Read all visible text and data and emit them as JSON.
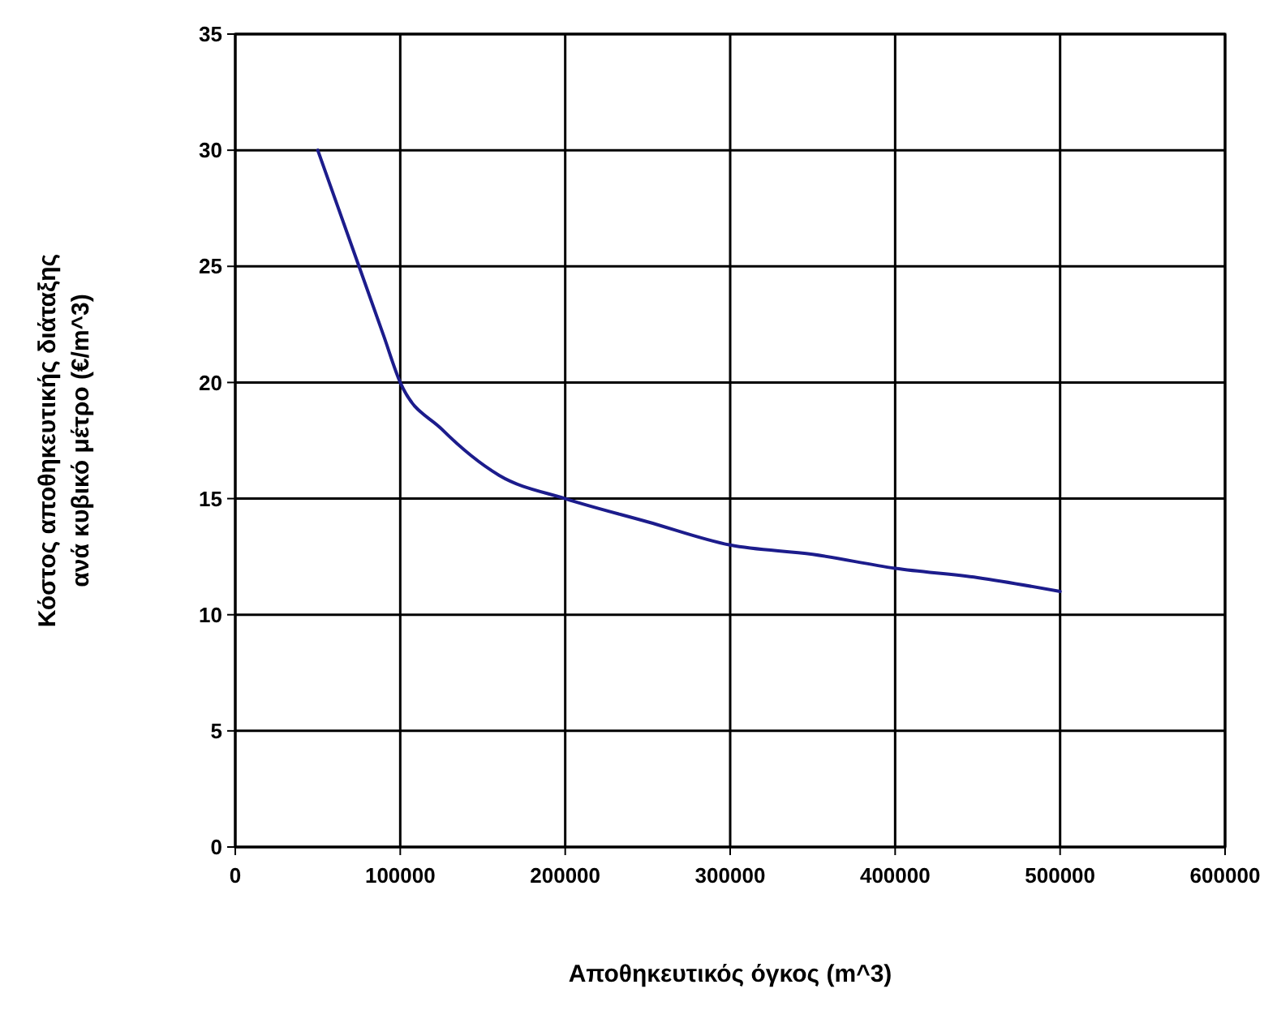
{
  "chart_data": {
    "type": "line",
    "xlabel": "Αποθηκευτικός όγκος (m^3)",
    "ylabel": "Κόστος αποθηκευτικής διάταξης\nανά κυβικό μέτρο (€/m^3)",
    "x": [
      50000,
      75000,
      90000,
      100000,
      125000,
      160000,
      200000,
      250000,
      300000,
      350000,
      400000,
      450000,
      500000
    ],
    "series": [
      {
        "color": "#1c1c8c",
        "values": [
          30,
          25,
          22,
          20,
          18,
          16,
          15,
          14,
          13,
          12.6,
          12,
          11.6,
          11
        ]
      }
    ],
    "xlim": [
      0,
      600000
    ],
    "xticks": [
      0,
      100000,
      200000,
      300000,
      400000,
      500000,
      600000
    ],
    "ylim": [
      0,
      35
    ],
    "yticks": [
      0,
      5,
      10,
      15,
      20,
      25,
      30,
      35
    ],
    "grid": true,
    "marker": "none",
    "line_style": "solid"
  }
}
